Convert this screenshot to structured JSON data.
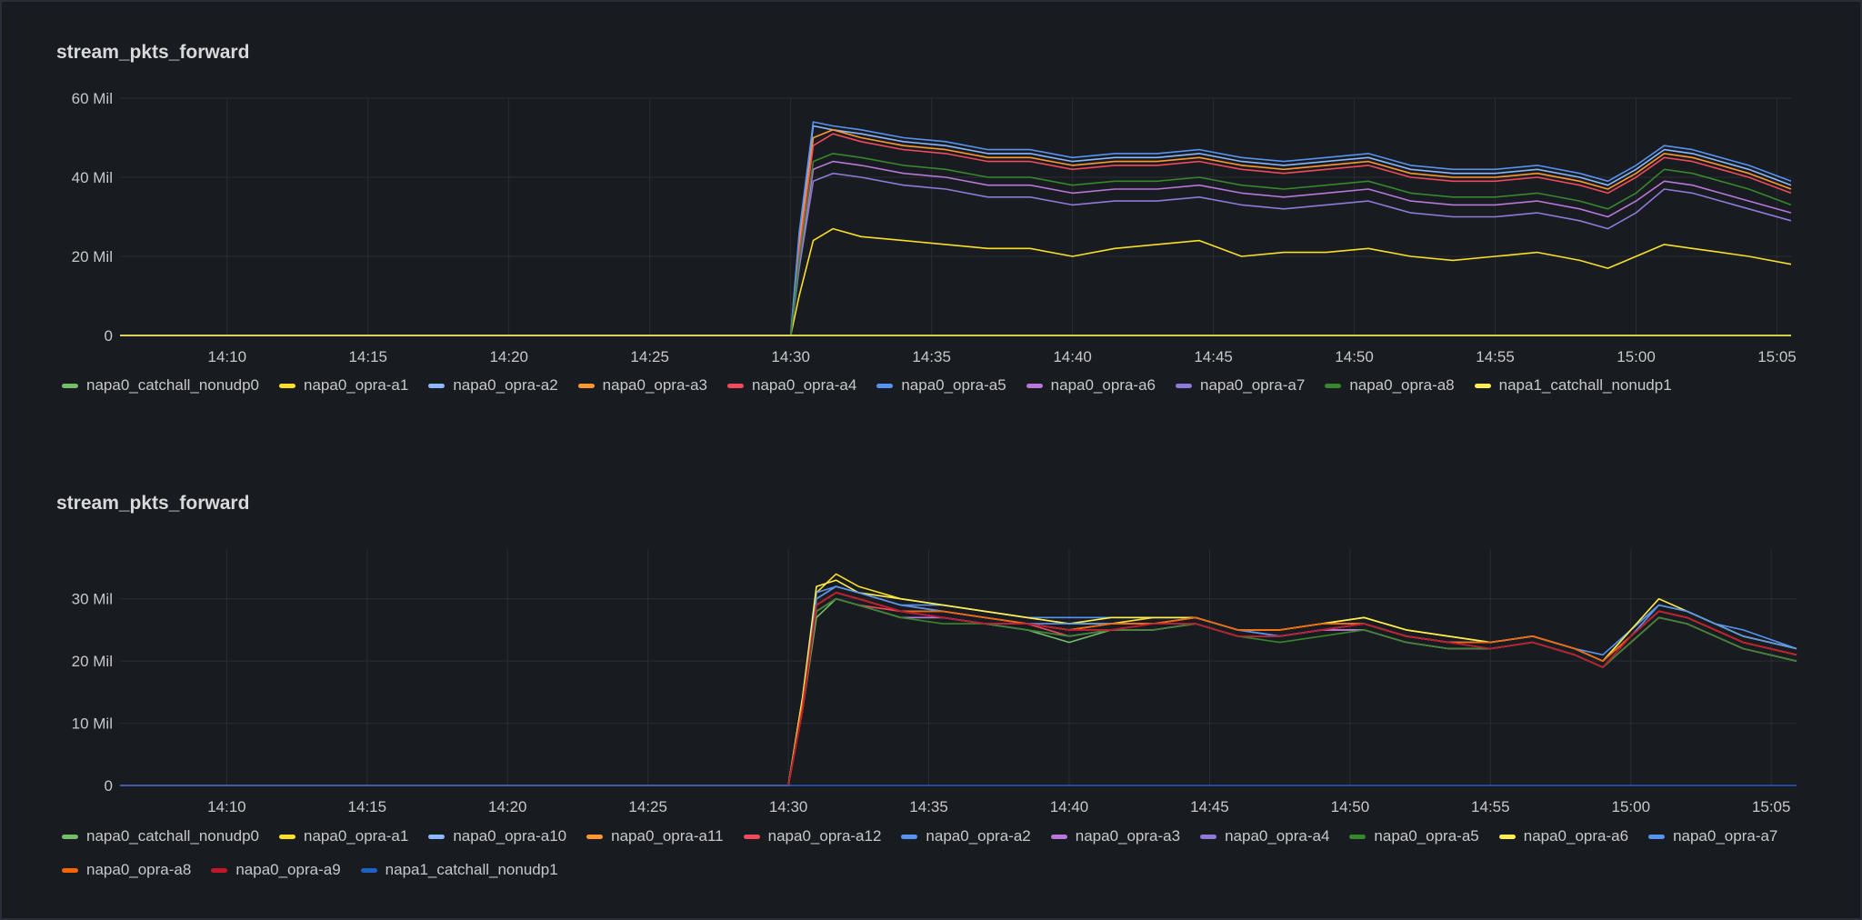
{
  "panels": [
    {
      "title": "stream_pkts_forward",
      "legend": [
        "napa0_catchall_nonudp0",
        "napa0_opra-a1",
        "napa0_opra-a2",
        "napa0_opra-a3",
        "napa0_opra-a4",
        "napa0_opra-a5",
        "napa0_opra-a6",
        "napa0_opra-a7",
        "napa0_opra-a8",
        "napa1_catchall_nonudp1"
      ]
    },
    {
      "title": "stream_pkts_forward",
      "legend": [
        "napa0_catchall_nonudp0",
        "napa0_opra-a1",
        "napa0_opra-a10",
        "napa0_opra-a11",
        "napa0_opra-a12",
        "napa0_opra-a2",
        "napa0_opra-a3",
        "napa0_opra-a4",
        "napa0_opra-a5",
        "napa0_opra-a6",
        "napa0_opra-a7",
        "napa0_opra-a8",
        "napa0_opra-a9",
        "napa1_catchall_nonudp1"
      ]
    }
  ],
  "chart_data": [
    {
      "type": "line",
      "title": "stream_pkts_forward",
      "xlabel": "",
      "ylabel": "",
      "x_ticks": [
        "14:10",
        "14:15",
        "14:20",
        "14:25",
        "14:30",
        "14:35",
        "14:40",
        "14:45",
        "14:50",
        "14:55",
        "15:00",
        "15:05"
      ],
      "x_tick_minutes": [
        10,
        15,
        20,
        25,
        30,
        35,
        40,
        45,
        50,
        55,
        60,
        65
      ],
      "x_range_minutes": [
        6.2,
        65.5
      ],
      "y_ticks": [
        "0",
        "20 Mil",
        "40 Mil",
        "60 Mil"
      ],
      "y_tick_values": [
        0,
        20,
        40,
        60
      ],
      "y_unit": "Mil",
      "ylim": [
        0,
        60
      ],
      "grid": true,
      "legend_position": "bottom",
      "x": [
        6.2,
        30.0,
        30.3,
        30.8,
        31.5,
        32.5,
        34,
        35.5,
        37,
        38.5,
        40,
        41.5,
        43,
        44.5,
        46,
        47.5,
        49,
        50.5,
        52,
        53.5,
        55,
        56.5,
        58,
        59,
        60,
        61,
        62,
        63,
        64,
        65.5
      ],
      "series": [
        {
          "name": "napa0_catchall_nonudp0",
          "color": "#73bf69",
          "values": [
            0,
            0,
            0,
            0,
            0,
            0,
            0,
            0,
            0,
            0,
            0,
            0,
            0,
            0,
            0,
            0,
            0,
            0,
            0,
            0,
            0,
            0,
            0,
            0,
            0,
            0,
            0,
            0,
            0,
            0
          ]
        },
        {
          "name": "napa0_opra-a1",
          "color": "#fade2a",
          "values": [
            0,
            0,
            10,
            24,
            27,
            25,
            24,
            23,
            22,
            22,
            20,
            22,
            23,
            24,
            20,
            21,
            21,
            22,
            20,
            19,
            20,
            21,
            19,
            17,
            20,
            23,
            22,
            21,
            20,
            18
          ]
        },
        {
          "name": "napa0_opra-a2",
          "color": "#8ab8ff",
          "values": [
            0,
            0,
            25,
            53,
            52,
            51,
            49,
            48,
            46,
            46,
            44,
            45,
            45,
            46,
            44,
            43,
            44,
            45,
            42,
            41,
            41,
            42,
            40,
            38,
            42,
            47,
            46,
            44,
            42,
            38
          ]
        },
        {
          "name": "napa0_opra-a3",
          "color": "#ff9830",
          "values": [
            0,
            0,
            23,
            50,
            52,
            50,
            48,
            47,
            45,
            45,
            43,
            44,
            44,
            45,
            43,
            42,
            43,
            44,
            41,
            40,
            40,
            41,
            39,
            37,
            41,
            46,
            45,
            43,
            41,
            37
          ]
        },
        {
          "name": "napa0_opra-a4",
          "color": "#f2495c",
          "values": [
            0,
            0,
            21,
            48,
            51,
            49,
            47,
            46,
            44,
            44,
            42,
            43,
            43,
            44,
            42,
            41,
            42,
            43,
            40,
            39,
            39,
            40,
            38,
            36,
            40,
            45,
            44,
            42,
            40,
            36
          ]
        },
        {
          "name": "napa0_opra-a5",
          "color": "#5794f2",
          "values": [
            0,
            0,
            26,
            54,
            53,
            52,
            50,
            49,
            47,
            47,
            45,
            46,
            46,
            47,
            45,
            44,
            45,
            46,
            43,
            42,
            42,
            43,
            41,
            39,
            43,
            48,
            47,
            45,
            43,
            39
          ]
        },
        {
          "name": "napa0_opra-a6",
          "color": "#b877d9",
          "values": [
            0,
            0,
            18,
            42,
            44,
            43,
            41,
            40,
            38,
            38,
            36,
            37,
            37,
            38,
            36,
            35,
            36,
            37,
            34,
            33,
            33,
            34,
            32,
            30,
            34,
            39,
            38,
            36,
            34,
            31
          ]
        },
        {
          "name": "napa0_opra-a7",
          "color": "#8f79d9",
          "values": [
            0,
            0,
            17,
            39,
            41,
            40,
            38,
            37,
            35,
            35,
            33,
            34,
            34,
            35,
            33,
            32,
            33,
            34,
            31,
            30,
            30,
            31,
            29,
            27,
            31,
            37,
            36,
            34,
            32,
            29
          ]
        },
        {
          "name": "napa0_opra-a8",
          "color": "#37872d",
          "values": [
            0,
            0,
            19,
            44,
            46,
            45,
            43,
            42,
            40,
            40,
            38,
            39,
            39,
            40,
            38,
            37,
            38,
            39,
            36,
            35,
            35,
            36,
            34,
            32,
            36,
            42,
            41,
            39,
            37,
            33
          ]
        },
        {
          "name": "napa1_catchall_nonudp1",
          "color": "#ffee52",
          "values": [
            0,
            0,
            0,
            0,
            0,
            0,
            0,
            0,
            0,
            0,
            0,
            0,
            0,
            0,
            0,
            0,
            0,
            0,
            0,
            0,
            0,
            0,
            0,
            0,
            0,
            0,
            0,
            0,
            0,
            0
          ]
        }
      ]
    },
    {
      "type": "line",
      "title": "stream_pkts_forward",
      "xlabel": "",
      "ylabel": "",
      "x_ticks": [
        "14:10",
        "14:15",
        "14:20",
        "14:25",
        "14:30",
        "14:35",
        "14:40",
        "14:45",
        "14:50",
        "14:55",
        "15:00",
        "15:05"
      ],
      "x_tick_minutes": [
        10,
        15,
        20,
        25,
        30,
        35,
        40,
        45,
        50,
        55,
        60,
        65
      ],
      "x_range_minutes": [
        6.2,
        65.9
      ],
      "y_ticks": [
        "0",
        "10 Mil",
        "20 Mil",
        "30 Mil"
      ],
      "y_tick_values": [
        0,
        10,
        20,
        30
      ],
      "y_unit": "Mil",
      "ylim": [
        0,
        38
      ],
      "grid": true,
      "legend_position": "bottom",
      "x": [
        6.2,
        30.0,
        30.5,
        31.0,
        31.7,
        32.5,
        34,
        35.5,
        37,
        38.5,
        40,
        41.5,
        43,
        44.5,
        46,
        47.5,
        49,
        50.5,
        52,
        53.5,
        55,
        56.5,
        58,
        59,
        60,
        61,
        62,
        63,
        64,
        65.9
      ],
      "series": [
        {
          "name": "napa0_catchall_nonudp0",
          "color": "#73bf69",
          "values": [
            0,
            0,
            12,
            27,
            30,
            29,
            27,
            27,
            26,
            25,
            23,
            25,
            25,
            26,
            24,
            24,
            25,
            25,
            23,
            22,
            22,
            23,
            21,
            19,
            23,
            27,
            26,
            24,
            22,
            20
          ]
        },
        {
          "name": "napa0_opra-a1",
          "color": "#fade2a",
          "values": [
            0,
            0,
            14,
            31,
            34,
            32,
            30,
            29,
            28,
            27,
            26,
            26,
            27,
            27,
            25,
            25,
            26,
            27,
            25,
            24,
            23,
            24,
            22,
            20,
            25,
            29,
            28,
            26,
            24,
            22
          ]
        },
        {
          "name": "napa0_opra-a10",
          "color": "#8ab8ff",
          "values": [
            0,
            0,
            13,
            29,
            31,
            30,
            28,
            28,
            27,
            26,
            25,
            26,
            26,
            27,
            25,
            24,
            25,
            26,
            24,
            23,
            23,
            24,
            22,
            20,
            24,
            28,
            27,
            25,
            23,
            21
          ]
        },
        {
          "name": "napa0_opra-a11",
          "color": "#ff9830",
          "values": [
            0,
            0,
            13,
            30,
            32,
            31,
            29,
            28,
            27,
            26,
            25,
            26,
            26,
            27,
            25,
            25,
            26,
            26,
            24,
            23,
            23,
            24,
            22,
            20,
            24,
            28,
            27,
            25,
            23,
            21
          ]
        },
        {
          "name": "napa0_opra-a12",
          "color": "#f2495c",
          "values": [
            0,
            0,
            12,
            28,
            30,
            29,
            28,
            27,
            26,
            26,
            24,
            25,
            25,
            26,
            24,
            24,
            25,
            25,
            23,
            22,
            22,
            23,
            21,
            19,
            23,
            27,
            26,
            24,
            22,
            20
          ]
        },
        {
          "name": "napa0_opra-a2",
          "color": "#5794f2",
          "values": [
            0,
            0,
            14,
            31,
            32,
            31,
            29,
            29,
            28,
            27,
            27,
            27,
            27,
            27,
            25,
            25,
            26,
            26,
            24,
            23,
            23,
            24,
            22,
            21,
            25,
            29,
            28,
            26,
            25,
            22
          ]
        },
        {
          "name": "napa0_opra-a3",
          "color": "#b877d9",
          "values": [
            0,
            0,
            12,
            28,
            30,
            29,
            27,
            27,
            26,
            25,
            24,
            25,
            25,
            26,
            24,
            24,
            25,
            25,
            23,
            22,
            22,
            23,
            21,
            19,
            23,
            27,
            26,
            24,
            22,
            20
          ]
        },
        {
          "name": "napa0_opra-a4",
          "color": "#8f79d9",
          "values": [
            0,
            0,
            13,
            29,
            31,
            30,
            28,
            27,
            26,
            26,
            25,
            25,
            26,
            26,
            24,
            24,
            25,
            26,
            24,
            23,
            22,
            23,
            21,
            19,
            24,
            28,
            27,
            25,
            23,
            21
          ]
        },
        {
          "name": "napa0_opra-a5",
          "color": "#37872d",
          "values": [
            0,
            0,
            12,
            28,
            30,
            29,
            27,
            26,
            26,
            25,
            24,
            25,
            25,
            26,
            24,
            23,
            24,
            25,
            23,
            22,
            22,
            23,
            21,
            19,
            23,
            27,
            26,
            24,
            22,
            20
          ]
        },
        {
          "name": "napa0_opra-a6",
          "color": "#ffee52",
          "values": [
            0,
            0,
            14,
            32,
            33,
            31,
            30,
            29,
            28,
            27,
            26,
            27,
            27,
            27,
            25,
            25,
            26,
            27,
            25,
            24,
            23,
            24,
            22,
            20,
            25,
            30,
            28,
            26,
            24,
            22
          ]
        },
        {
          "name": "napa0_opra-a7",
          "color": "#5794f2",
          "values": [
            0,
            0,
            13,
            30,
            32,
            31,
            29,
            28,
            27,
            26,
            26,
            26,
            26,
            27,
            25,
            24,
            25,
            26,
            24,
            23,
            23,
            24,
            22,
            20,
            24,
            29,
            28,
            26,
            24,
            22
          ]
        },
        {
          "name": "napa0_opra-a8",
          "color": "#fa6400",
          "values": [
            0,
            0,
            13,
            29,
            31,
            30,
            28,
            28,
            27,
            26,
            25,
            26,
            26,
            27,
            25,
            25,
            26,
            26,
            24,
            23,
            23,
            24,
            22,
            20,
            24,
            28,
            27,
            25,
            23,
            21
          ]
        },
        {
          "name": "napa0_opra-a9",
          "color": "#c4162a",
          "values": [
            0,
            0,
            12,
            29,
            31,
            30,
            28,
            27,
            26,
            26,
            25,
            25,
            26,
            26,
            24,
            24,
            25,
            26,
            24,
            23,
            22,
            23,
            21,
            19,
            24,
            28,
            27,
            25,
            23,
            21
          ]
        },
        {
          "name": "napa1_catchall_nonudp1",
          "color": "#1f60c4",
          "values": [
            0,
            0,
            0,
            0,
            0,
            0,
            0,
            0,
            0,
            0,
            0,
            0,
            0,
            0,
            0,
            0,
            0,
            0,
            0,
            0,
            0,
            0,
            0,
            0,
            0,
            0,
            0,
            0,
            0,
            0
          ]
        }
      ]
    }
  ]
}
